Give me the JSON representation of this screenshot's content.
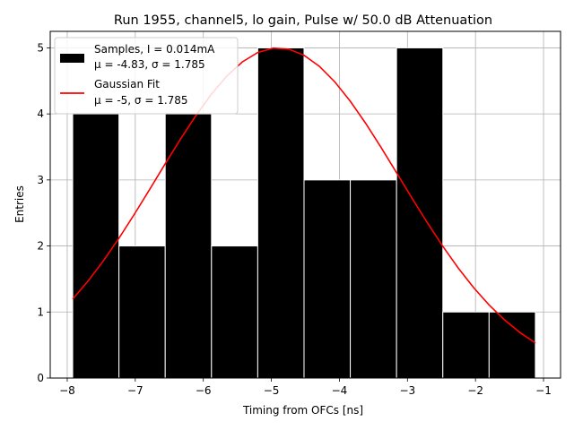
{
  "chart_data": {
    "type": "bar",
    "title": "Run 1955, channel5, lo gain, Pulse w/ 50.0 dB Attenuation",
    "xlabel": "Timing from OFCs [ns]",
    "ylabel": "Entries",
    "xlim": [
      -8.25,
      -0.75
    ],
    "ylim": [
      0,
      5.25
    ],
    "grid": true,
    "legend_position": "top-left",
    "xticks": [
      -8,
      -7,
      -6,
      -5,
      -4,
      -3,
      -2,
      -1
    ],
    "xtick_labels": [
      "−8",
      "−7",
      "−6",
      "−5",
      "−4",
      "−3",
      "−2",
      "−1"
    ],
    "yticks": [
      0,
      1,
      2,
      3,
      4,
      5
    ],
    "ytick_labels": [
      "0",
      "1",
      "2",
      "3",
      "4",
      "5"
    ],
    "histogram": {
      "bin_edges": [
        -7.92,
        -7.24,
        -6.56,
        -5.88,
        -5.2,
        -4.52,
        -3.84,
        -3.16,
        -2.48,
        -1.8,
        -1.12
      ],
      "counts": [
        4,
        2,
        4,
        2,
        5,
        3,
        3,
        5,
        1,
        1
      ],
      "color": "#000000",
      "edge_color": "#ffffff"
    },
    "gaussian_fit": {
      "mean": -4.9,
      "sigma": 1.785,
      "amplitude": 5,
      "x_range": [
        -7.92,
        -1.12
      ],
      "color": "#ff0000"
    },
    "legend": [
      {
        "label_line1": "Samples, I = 0.014mA",
        "label_line2": "μ = -4.83, σ = 1.785",
        "kind": "patch",
        "color": "#000000"
      },
      {
        "label_line1": "Gaussian Fit",
        "label_line2": "μ = -5, σ = 1.785",
        "kind": "line",
        "color": "#ff0000"
      }
    ]
  }
}
